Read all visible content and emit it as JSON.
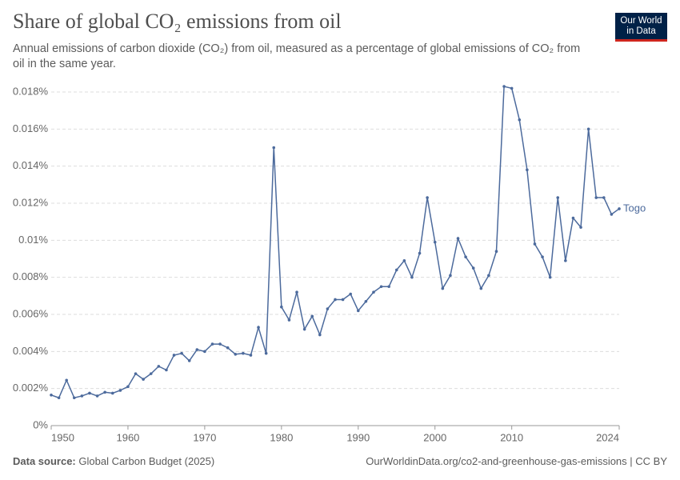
{
  "chart_data": {
    "type": "line",
    "title": "Share of global CO₂ emissions from oil",
    "subtitle": "Annual emissions of carbon dioxide (CO₂) from oil, measured as a percentage of global emissions of CO₂ from oil in the same year.",
    "logo": [
      "Our World",
      "in Data"
    ],
    "data_source_label": "Data source:",
    "data_source": "Global Carbon Budget (2025)",
    "url": "OurWorldinData.org/co2-and-greenhouse-gas-emissions | CC BY",
    "x": [
      1950,
      1951,
      1952,
      1953,
      1954,
      1955,
      1956,
      1957,
      1958,
      1959,
      1960,
      1961,
      1962,
      1963,
      1964,
      1965,
      1966,
      1967,
      1968,
      1969,
      1970,
      1971,
      1972,
      1973,
      1974,
      1975,
      1976,
      1977,
      1978,
      1979,
      1980,
      1981,
      1982,
      1983,
      1984,
      1985,
      1986,
      1987,
      1988,
      1989,
      1990,
      1991,
      1992,
      1993,
      1994,
      1995,
      1996,
      1997,
      1998,
      1999,
      2000,
      2001,
      2002,
      2003,
      2004,
      2005,
      2006,
      2007,
      2008,
      2009,
      2010,
      2011,
      2012,
      2013,
      2014,
      2015,
      2016,
      2017,
      2018,
      2019,
      2020,
      2021,
      2022,
      2023,
      2024
    ],
    "series": [
      {
        "name": "Togo",
        "color": "#4c6a9c",
        "values": [
          0.00165,
          0.0015,
          0.00245,
          0.0015,
          0.0016,
          0.00175,
          0.0016,
          0.0018,
          0.00175,
          0.0019,
          0.0021,
          0.0028,
          0.0025,
          0.0028,
          0.0032,
          0.003,
          0.0038,
          0.0039,
          0.0035,
          0.0041,
          0.004,
          0.0044,
          0.0044,
          0.0042,
          0.00385,
          0.0039,
          0.0038,
          0.0053,
          0.0039,
          0.015,
          0.0064,
          0.0057,
          0.0072,
          0.0052,
          0.0059,
          0.0049,
          0.0063,
          0.0068,
          0.0068,
          0.0071,
          0.0062,
          0.0067,
          0.0072,
          0.0075,
          0.0075,
          0.0084,
          0.0089,
          0.008,
          0.0093,
          0.0123,
          0.0099,
          0.0074,
          0.0081,
          0.0101,
          0.0091,
          0.0085,
          0.0074,
          0.0081,
          0.0094,
          0.0183,
          0.0182,
          0.0165,
          0.0138,
          0.0098,
          0.0091,
          0.008,
          0.0123,
          0.0089,
          0.0112,
          0.0107,
          0.016,
          0.0123,
          0.0123,
          0.0114,
          0.0117
        ]
      }
    ],
    "xlim": [
      1950,
      2024
    ],
    "xticks": [
      1950,
      1960,
      1970,
      1980,
      1990,
      2000,
      2010,
      2024
    ],
    "ylim": [
      0,
      0.018
    ],
    "yticks": [
      {
        "value": 0,
        "label": "0%"
      },
      {
        "value": 0.002,
        "label": "0.002%"
      },
      {
        "value": 0.004,
        "label": "0.004%"
      },
      {
        "value": 0.006,
        "label": "0.006%"
      },
      {
        "value": 0.008,
        "label": "0.008%"
      },
      {
        "value": 0.01,
        "label": "0.01%"
      },
      {
        "value": 0.012,
        "label": "0.012%"
      },
      {
        "value": 0.014,
        "label": "0.014%"
      },
      {
        "value": 0.016,
        "label": "0.016%"
      },
      {
        "value": 0.018,
        "label": "0.018%"
      }
    ],
    "grid": true
  }
}
